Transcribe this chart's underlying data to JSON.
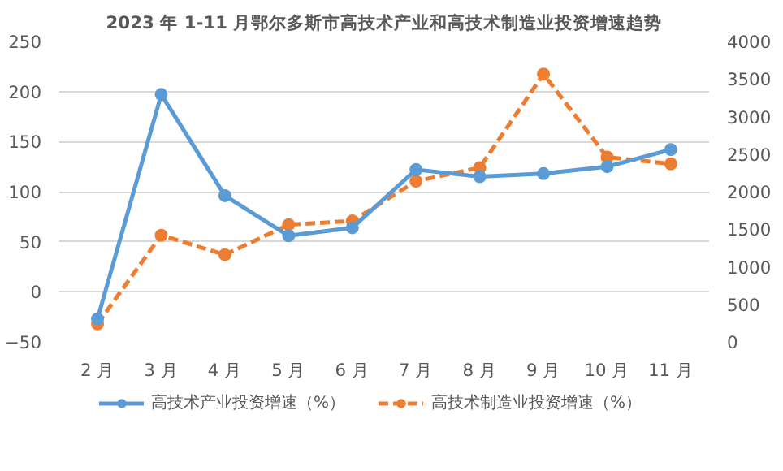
{
  "chart_data": {
    "type": "line",
    "title": "2023 年 1-11 月鄂尔多斯市高技术产业和高技术制造业投资增速趋势",
    "categories": [
      "2 月",
      "3 月",
      "4 月",
      "5 月",
      "6 月",
      "7 月",
      "8 月",
      "9 月",
      "10 月",
      "11 月"
    ],
    "series": [
      {
        "name": "高技术产业投资增速（%）",
        "color": "#5b9bd5",
        "line_style": "solid",
        "values": [
          -27,
          197,
          96,
          56,
          64,
          122,
          115,
          118,
          125,
          142
        ]
      },
      {
        "name": "高技术制造业投资增速（%）",
        "color": "#ed7d31",
        "line_style": "dashed",
        "axis": "y2",
        "values": [
          240,
          1420,
          1160,
          1560,
          1610,
          2140,
          2320,
          3565,
          2460,
          2370
        ]
      }
    ],
    "ylim": [
      -50,
      250
    ],
    "yticks": [
      -50,
      0,
      50,
      100,
      150,
      200,
      250
    ],
    "y2lim": [
      0,
      4000
    ],
    "y2ticks": [
      0,
      500,
      1000,
      1500,
      2000,
      2500,
      3000,
      3500,
      4000
    ],
    "grid": "y",
    "legend": "bottom",
    "marker": "circle"
  }
}
